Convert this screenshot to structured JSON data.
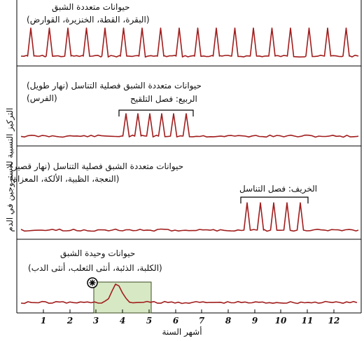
{
  "y_axis_label": "التركيز النسبية للاستروجين في الدم",
  "x_axis_label": "أشهر السنة",
  "months": [
    "1",
    "2",
    "3",
    "4",
    "5",
    "6",
    "7",
    "8",
    "9",
    "10",
    "11",
    "12"
  ],
  "panels": [
    {
      "title": "حيوانات متعددة الشبق",
      "examples": "(البقرة، القطة، الخنزيرة، القوارض)"
    },
    {
      "title": "حيوانات متعددة الشبق فصلية التناسل (نهار طويل)",
      "examples": "(الفرس)",
      "season_label": "الربيع: فصل التلقيح"
    },
    {
      "title": "حيوانات متعددة الشبق فصلية التناسل (نهار قصير)",
      "examples": "(النعجة، الظبية، الألكة، المعزاة)",
      "season_label": "الخريف: فصل التناسل"
    },
    {
      "title": "حيوانات وحيدة الشبق",
      "examples": "(الكلبة، الذئبة، أنثى الثعلب، أنثى الدب)"
    }
  ],
  "colors": {
    "trace": "#a11d1d",
    "frame": "#000000",
    "highlight_fill": "#d7e8c4",
    "highlight_border": "#3b4a22"
  },
  "icons": {
    "marker": "asterisk-circle-icon"
  }
}
